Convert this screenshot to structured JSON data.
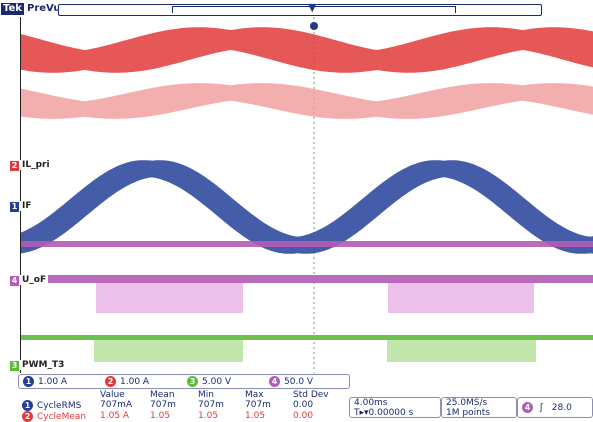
{
  "header": {
    "brand": "Tek",
    "mode": "PreVu",
    "trigger_marker": "T"
  },
  "channels": [
    {
      "num": "1",
      "name": "IF",
      "color": "#243f9a"
    },
    {
      "num": "2",
      "name": "IL_pri",
      "color": "#e23a3a"
    },
    {
      "num": "3",
      "name": "PWM_T3",
      "color": "#5dbb3a"
    },
    {
      "num": "4",
      "name": "U_oF",
      "color": "#b35bb5"
    }
  ],
  "channel_settings": [
    {
      "num": "1",
      "value": "1.00 A",
      "color": "#243f9a"
    },
    {
      "num": "2",
      "value": "1.00 A",
      "color": "#e23a3a"
    },
    {
      "num": "3",
      "value": "5.00 V",
      "color": "#5dbb3a"
    },
    {
      "num": "4",
      "value": "50.0 V",
      "color": "#b35bb5"
    }
  ],
  "measurements": {
    "headers": [
      "Value",
      "Mean",
      "Min",
      "Max",
      "Std Dev"
    ],
    "rows": [
      {
        "num": "1",
        "name": "CycleRMS",
        "value": "707mA",
        "mean": "707m",
        "min": "707m",
        "max": "707m",
        "std": "0.00",
        "color": "#243f9a"
      },
      {
        "num": "2",
        "name": "CycleMean",
        "value": "1.05 A",
        "mean": "1.05",
        "min": "1.05",
        "max": "1.05",
        "std": "0.00",
        "color": "#e23a3a"
      }
    ]
  },
  "timebase": {
    "scale": "4.00ms",
    "position": "0.00000 s"
  },
  "acquisition": {
    "rate": "25.0MS/s",
    "points": "1M points"
  },
  "trigger": {
    "source": "4",
    "slope": "ʃ",
    "level": "28.0"
  }
}
